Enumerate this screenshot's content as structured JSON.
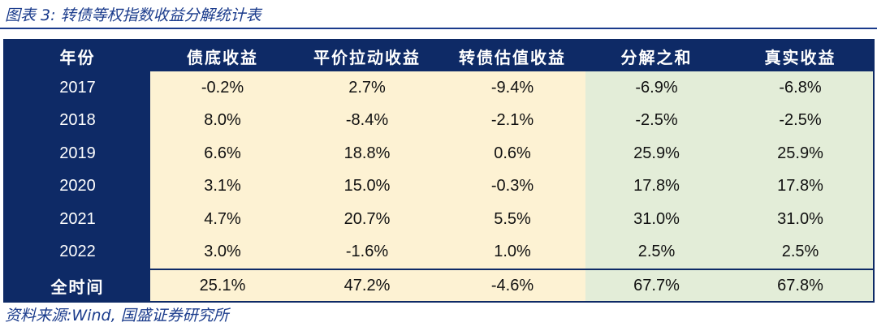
{
  "caption": "图表 3:  转债等权指数收益分解统计表",
  "source": "资料来源:Wind, 国盛证券研究所",
  "table": {
    "headers": [
      "年份",
      "债底收益",
      "平价拉动收益",
      "转债估值收益",
      "分解之和",
      "真实收益"
    ],
    "rows": [
      [
        "2017",
        "-0.2%",
        "2.7%",
        "-9.4%",
        "-6.9%",
        "-6.8%"
      ],
      [
        "2018",
        "8.0%",
        "-8.4%",
        "-2.1%",
        "-2.5%",
        "-2.5%"
      ],
      [
        "2019",
        "6.6%",
        "18.8%",
        "0.6%",
        "25.9%",
        "25.9%"
      ],
      [
        "2020",
        "3.1%",
        "15.0%",
        "-0.3%",
        "17.8%",
        "17.8%"
      ],
      [
        "2021",
        "4.7%",
        "20.7%",
        "5.5%",
        "31.0%",
        "31.0%"
      ],
      [
        "2022",
        "3.0%",
        "-1.6%",
        "1.0%",
        "2.5%",
        "2.5%"
      ]
    ],
    "total": [
      "全时间",
      "25.1%",
      "47.2%",
      "-4.6%",
      "67.7%",
      "67.8%"
    ]
  },
  "colors": {
    "header_bg": "#0e2a66",
    "tan_fill": "#fdf2d3",
    "green_fill": "#e3edd8",
    "caption_text": "#1a3b8c"
  }
}
